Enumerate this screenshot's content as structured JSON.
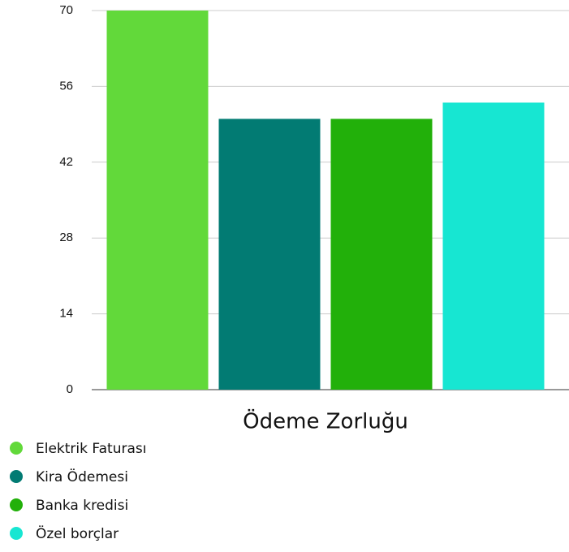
{
  "chart_data": {
    "type": "bar",
    "categories": [
      "Ödeme Zorluğu"
    ],
    "series": [
      {
        "name": "Elektrik Faturası",
        "color": "#62d93a",
        "values": [
          70
        ]
      },
      {
        "name": "Kira Ödemesi",
        "color": "#027b73",
        "values": [
          50
        ]
      },
      {
        "name": "Banka kredisi",
        "color": "#22b00a",
        "values": [
          50
        ]
      },
      {
        "name": "Özel borçlar",
        "color": "#17e6d2",
        "values": [
          53
        ]
      }
    ],
    "ylim": [
      0,
      70
    ],
    "yticks": [
      0,
      14,
      28,
      42,
      56,
      70
    ],
    "grid": true,
    "legend": "bottom-left"
  }
}
